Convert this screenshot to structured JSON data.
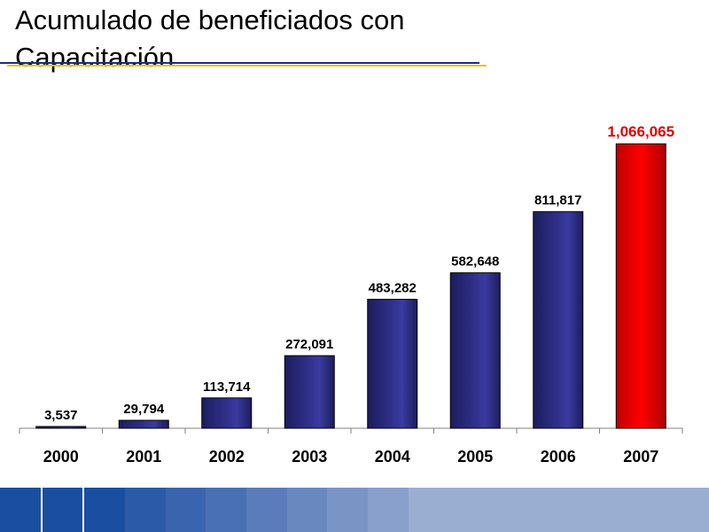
{
  "slide": {
    "title": "Acumulado de beneficiados con Capacitación"
  },
  "colors": {
    "bar_default": "#2e2f86",
    "bar_highlight": "#ff0000",
    "label_default": "#000000",
    "label_highlight": "#e00000",
    "rule_blue": "#1a2a8c",
    "rule_gold": "#e8c400"
  },
  "chart_data": {
    "type": "bar",
    "title": "",
    "xlabel": "",
    "ylabel": "",
    "categories": [
      "2000",
      "2001",
      "2002",
      "2003",
      "2004",
      "2005",
      "2006",
      "2007"
    ],
    "values": [
      3537,
      29794,
      113714,
      272091,
      483282,
      582648,
      811817,
      1066065
    ],
    "value_labels": [
      "3,537",
      "29,794",
      "113,714",
      "272,091",
      "483,282",
      "582,648",
      "811,817",
      "1,066,065"
    ],
    "highlight_index": 7,
    "ylim": [
      0,
      1100000
    ],
    "grid": false,
    "legend": "none"
  },
  "footer_colors": [
    "#1a4ea0",
    "#1a4ea0",
    "#1a4ea0",
    "#2a5aa8",
    "#3a64ae",
    "#4a70b4",
    "#5a7cba",
    "#6a88c0",
    "#7a94c6",
    "#8aa0cc",
    "#9aaed2"
  ]
}
